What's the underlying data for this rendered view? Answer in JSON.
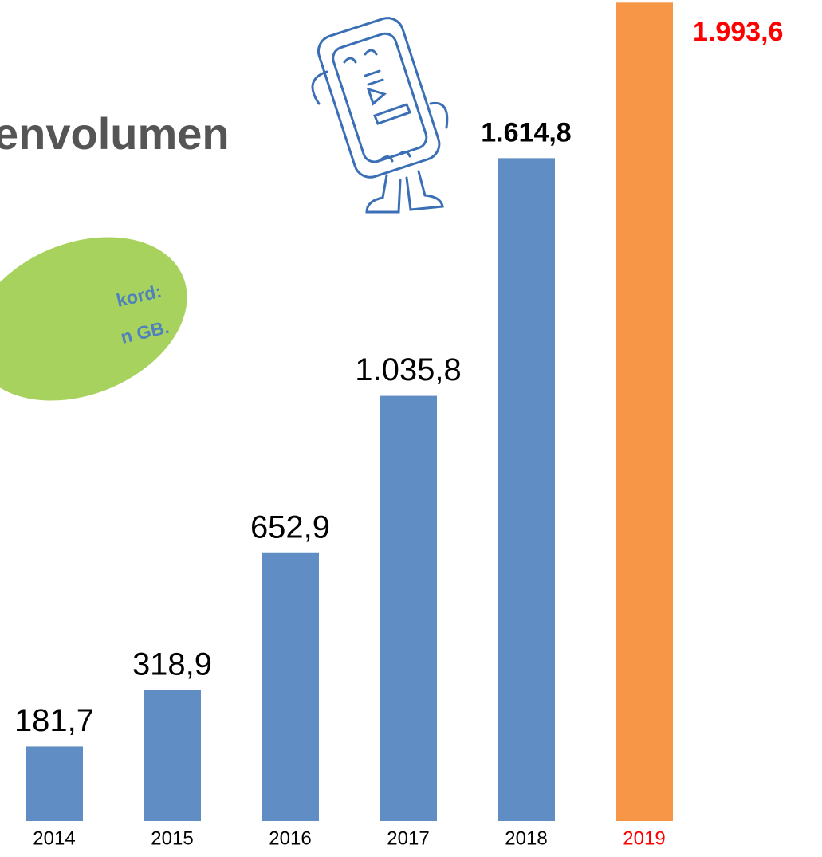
{
  "chart_data": {
    "type": "bar",
    "title": "envolumen",
    "annotations": [
      "kord:",
      "n GB."
    ],
    "categories": [
      "2014",
      "2015",
      "2016",
      "2017",
      "2018",
      "2019"
    ],
    "values": [
      181.7,
      318.9,
      652.9,
      1035.8,
      1614.8,
      1993.6
    ],
    "value_labels": [
      "181,7",
      "318,9",
      "652,9",
      "1.035,8",
      "1.614,8",
      "1.993,6"
    ],
    "colors": [
      "#5f8dc4",
      "#5f8dc4",
      "#5f8dc4",
      "#5f8dc4",
      "#5f8dc4",
      "#f79646"
    ],
    "label_colors": [
      "#000000",
      "#000000",
      "#000000",
      "#000000",
      "#000000",
      "#ff0000"
    ],
    "category_colors": [
      "#000000",
      "#000000",
      "#000000",
      "#000000",
      "#000000",
      "#ff0000"
    ],
    "label_weights": [
      "normal",
      "normal",
      "normal",
      "normal",
      "bold",
      "bold"
    ],
    "ylim": [
      0,
      2000
    ]
  }
}
